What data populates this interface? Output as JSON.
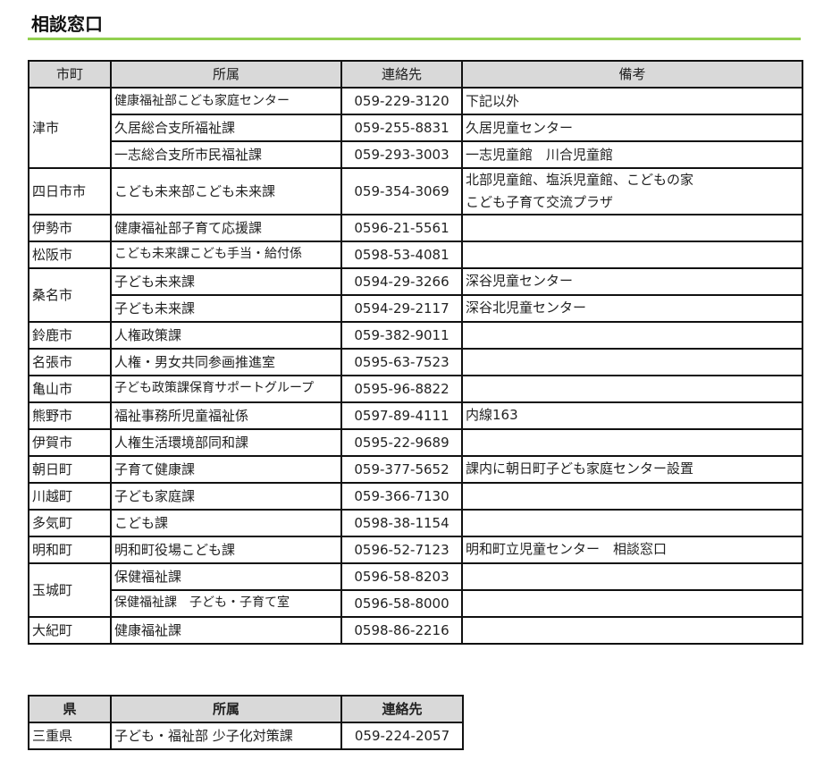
{
  "page_title": "相談窓口",
  "accent_color": "#92d050",
  "municipal_table": {
    "headers": [
      "市町",
      "所属",
      "連絡先",
      "備考"
    ],
    "groups": [
      {
        "city": "津市",
        "entries": [
          {
            "dept": "健康福祉部こども家庭センター",
            "phone": "059-229-3120",
            "note": "下記以外"
          },
          {
            "dept": "久居総合支所福祉課",
            "phone": "059-255-8831",
            "note": "久居児童センター"
          },
          {
            "dept": "一志総合支所市民福祉課",
            "phone": "059-293-3003",
            "note": "一志児童館　川合児童館"
          }
        ]
      },
      {
        "city": "四日市市",
        "entries": [
          {
            "dept": "こども未来部こども未来課",
            "phone": "059-354-3069",
            "note": "北部児童館、塩浜児童館、こどもの家\nこども子育て交流プラザ"
          }
        ]
      },
      {
        "city": "伊勢市",
        "entries": [
          {
            "dept": "健康福祉部子育て応援課",
            "phone": "0596-21-5561",
            "note": ""
          }
        ]
      },
      {
        "city": "松阪市",
        "entries": [
          {
            "dept": "こども未来課こども手当・給付係",
            "phone": "0598-53-4081",
            "note": ""
          }
        ]
      },
      {
        "city": "桑名市",
        "entries": [
          {
            "dept": "子ども未来課",
            "phone": "0594-29-3266",
            "note": "深谷児童センター"
          },
          {
            "dept": "子ども未来課",
            "phone": "0594-29-2117",
            "note": "深谷北児童センター"
          }
        ]
      },
      {
        "city": "鈴鹿市",
        "entries": [
          {
            "dept": "人権政策課",
            "phone": "059-382-9011",
            "note": ""
          }
        ]
      },
      {
        "city": "名張市",
        "entries": [
          {
            "dept": "人権・男女共同参画推進室",
            "phone": "0595-63-7523",
            "note": ""
          }
        ]
      },
      {
        "city": "亀山市",
        "entries": [
          {
            "dept": "子ども政策課保育サポートグループ",
            "phone": "0595-96-8822",
            "note": ""
          }
        ]
      },
      {
        "city": "熊野市",
        "entries": [
          {
            "dept": "福祉事務所児童福祉係",
            "phone": "0597-89-4111",
            "note": "内線163"
          }
        ]
      },
      {
        "city": "伊賀市",
        "entries": [
          {
            "dept": "人権生活環境部同和課",
            "phone": "0595-22-9689",
            "note": ""
          }
        ]
      },
      {
        "city": "朝日町",
        "entries": [
          {
            "dept": "子育て健康課",
            "phone": "059-377-5652",
            "note": "課内に朝日町子ども家庭センター設置"
          }
        ]
      },
      {
        "city": "川越町",
        "entries": [
          {
            "dept": "子ども家庭課",
            "phone": "059-366-7130",
            "note": ""
          }
        ]
      },
      {
        "city": "多気町",
        "entries": [
          {
            "dept": "こども課",
            "phone": "0598-38-1154",
            "note": ""
          }
        ]
      },
      {
        "city": "明和町",
        "entries": [
          {
            "dept": "明和町役場こども課",
            "phone": "0596-52-7123",
            "note": "明和町立児童センター　相談窓口"
          }
        ]
      },
      {
        "city": "玉城町",
        "entries": [
          {
            "dept": "保健福祉課",
            "phone": "0596-58-8203",
            "note": ""
          },
          {
            "dept": "保健福祉課　子ども・子育て室",
            "phone": "0596-58-8000",
            "note": ""
          }
        ]
      },
      {
        "city": "大紀町",
        "entries": [
          {
            "dept": "健康福祉課",
            "phone": "0598-86-2216",
            "note": ""
          }
        ]
      }
    ]
  },
  "prefecture_table": {
    "headers": [
      "県",
      "所属",
      "連絡先"
    ],
    "rows": [
      {
        "pref": "三重県",
        "dept": "子ども・福祉部 少子化対策課",
        "phone": "059-224-2057"
      }
    ]
  }
}
